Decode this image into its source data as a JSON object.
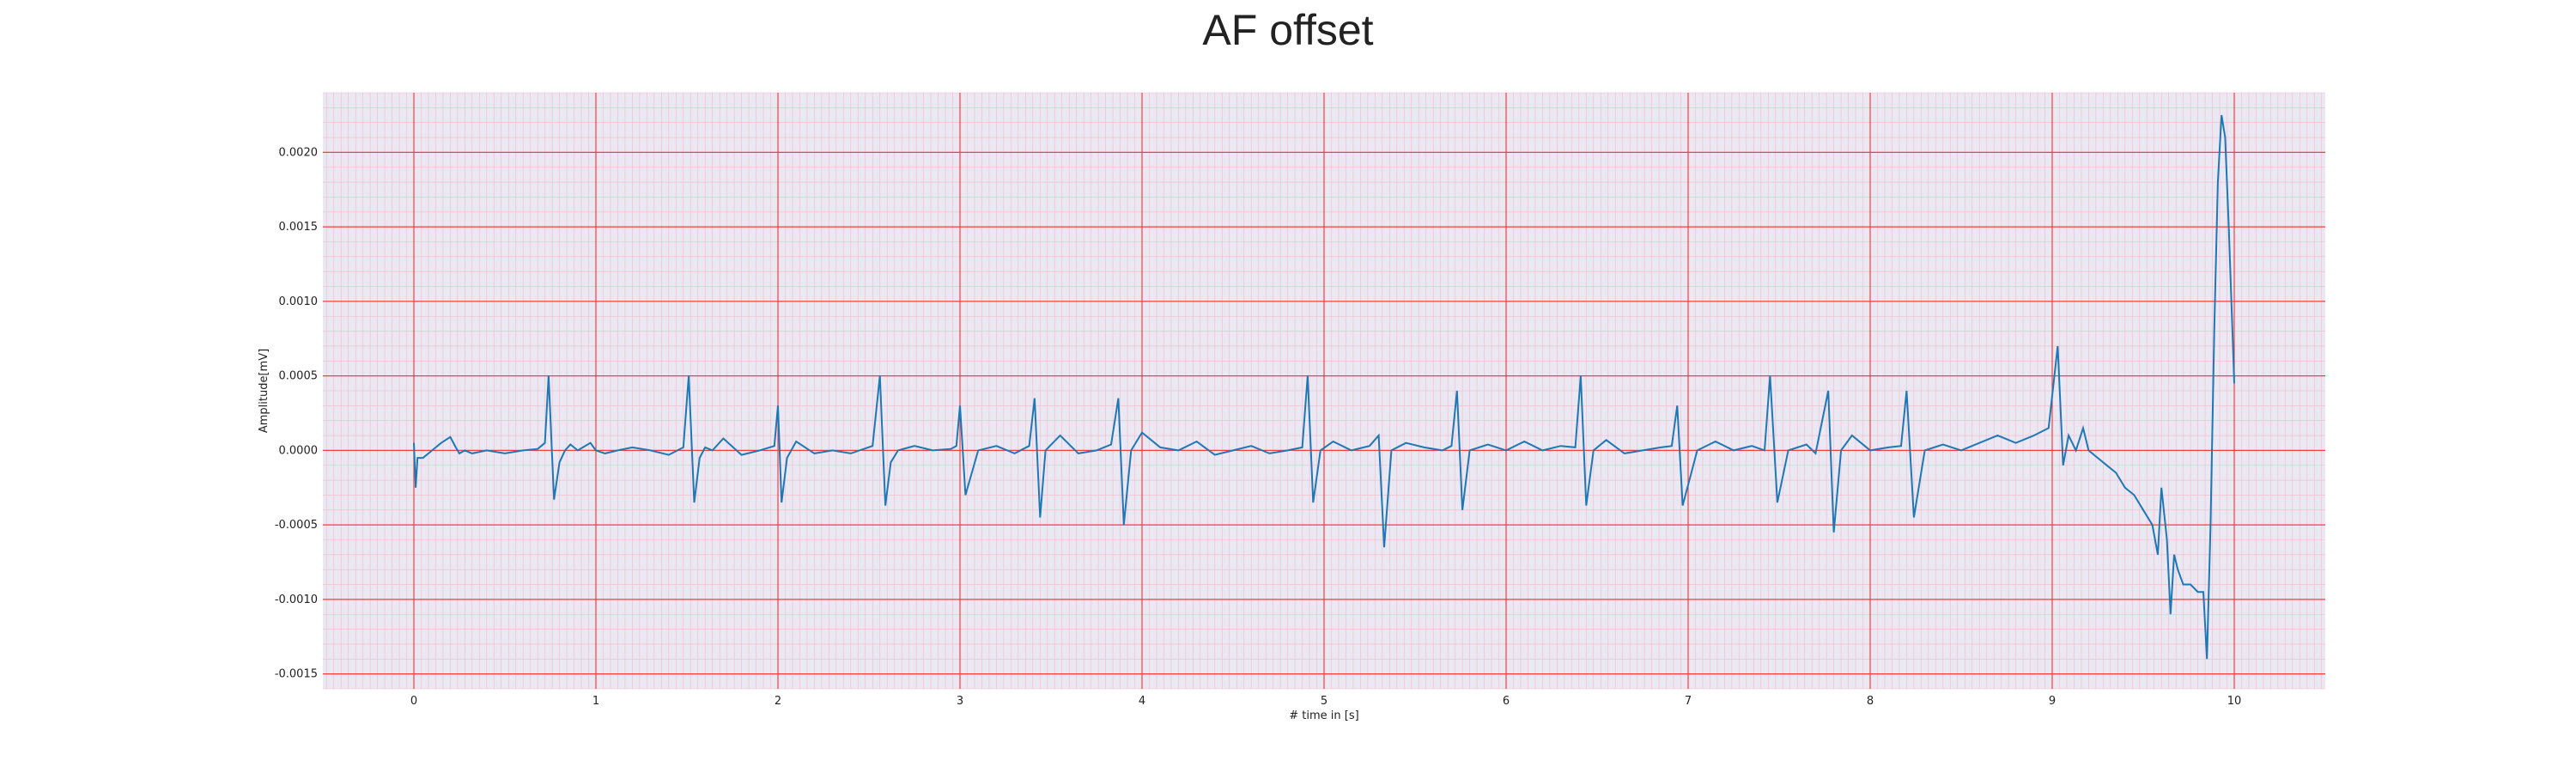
{
  "chart_data": {
    "type": "line",
    "title": "AF offset",
    "xlabel": "# time in [s]",
    "ylabel": "Amplitude[mV]",
    "xlim": [
      -0.5,
      10.5
    ],
    "ylim": [
      -0.0016,
      0.0024
    ],
    "xticks": [
      0,
      1,
      2,
      3,
      4,
      5,
      6,
      7,
      8,
      9,
      10
    ],
    "xtick_labels": [
      "0",
      "1",
      "2",
      "3",
      "4",
      "5",
      "6",
      "7",
      "8",
      "9",
      "10"
    ],
    "yticks": [
      -0.0015,
      -0.001,
      -0.0005,
      0.0,
      0.0005,
      0.001,
      0.0015,
      0.002
    ],
    "ytick_labels": [
      "-0.0015",
      "-0.0010",
      "-0.0005",
      "0.0000",
      "0.0005",
      "0.0010",
      "0.0015",
      "0.0020"
    ],
    "grid": "major and minor, red, ECG paper style",
    "legend": "none",
    "colors": {
      "line": "#1f77b4",
      "plot_bg": "#eae8f3",
      "major_grid": "#ff3b3b",
      "minor_grid": "#f6b9c6"
    },
    "series": [
      {
        "x": [
          0.0,
          0.01,
          0.02,
          0.05,
          0.1,
          0.15,
          0.2,
          0.23,
          0.25,
          0.28,
          0.32,
          0.4,
          0.5,
          0.6,
          0.68,
          0.72,
          0.74,
          0.77,
          0.8,
          0.83,
          0.86,
          0.9,
          0.97,
          1.0,
          1.05,
          1.12,
          1.2,
          1.3,
          1.4,
          1.48,
          1.51,
          1.54,
          1.57,
          1.6,
          1.64,
          1.7,
          1.8,
          1.9,
          1.98,
          2.0,
          2.02,
          2.05,
          2.1,
          2.2,
          2.3,
          2.4,
          2.52,
          2.56,
          2.59,
          2.62,
          2.66,
          2.75,
          2.85,
          2.95,
          2.98,
          3.0,
          3.03,
          3.1,
          3.2,
          3.3,
          3.38,
          3.41,
          3.44,
          3.47,
          3.55,
          3.65,
          3.75,
          3.83,
          3.87,
          3.9,
          3.94,
          4.0,
          4.1,
          4.2,
          4.3,
          4.4,
          4.5,
          4.6,
          4.7,
          4.8,
          4.88,
          4.91,
          4.94,
          4.98,
          5.05,
          5.15,
          5.25,
          5.3,
          5.33,
          5.37,
          5.45,
          5.55,
          5.65,
          5.7,
          5.73,
          5.76,
          5.8,
          5.9,
          6.0,
          6.1,
          6.2,
          6.3,
          6.38,
          6.41,
          6.44,
          6.48,
          6.55,
          6.65,
          6.75,
          6.85,
          6.91,
          6.94,
          6.97,
          7.05,
          7.15,
          7.25,
          7.35,
          7.42,
          7.45,
          7.49,
          7.55,
          7.65,
          7.7,
          7.77,
          7.8,
          7.84,
          7.9,
          8.0,
          8.1,
          8.17,
          8.2,
          8.24,
          8.3,
          8.4,
          8.5,
          8.6,
          8.7,
          8.8,
          8.9,
          8.98,
          9.03,
          9.06,
          9.09,
          9.13,
          9.17,
          9.2,
          9.25,
          9.3,
          9.35,
          9.4,
          9.45,
          9.5,
          9.55,
          9.58,
          9.6,
          9.63,
          9.65,
          9.67,
          9.69,
          9.72,
          9.76,
          9.8,
          9.83,
          9.85,
          9.87,
          9.89,
          9.91,
          9.93,
          9.95,
          9.97,
          9.99,
          10.0
        ],
        "y": [
          5e-05,
          -0.00025,
          -5e-05,
          -5e-05,
          0.0,
          5e-05,
          9e-05,
          2e-05,
          -2e-05,
          0.0,
          -2e-05,
          0.0,
          -2e-05,
          0.0,
          1e-05,
          5e-05,
          0.0005,
          -0.00033,
          -8e-05,
          0.0,
          4e-05,
          0.0,
          5e-05,
          0.0,
          -2e-05,
          0.0,
          2e-05,
          0.0,
          -3e-05,
          2e-05,
          0.0005,
          -0.00035,
          -5e-05,
          2e-05,
          0.0,
          8e-05,
          -3e-05,
          0.0,
          3e-05,
          0.0003,
          -0.00035,
          -5e-05,
          6e-05,
          -2e-05,
          0.0,
          -2e-05,
          3e-05,
          0.0005,
          -0.00037,
          -8e-05,
          0.0,
          3e-05,
          0.0,
          1e-05,
          3e-05,
          0.0003,
          -0.0003,
          0.0,
          3e-05,
          -2e-05,
          3e-05,
          0.00035,
          -0.00045,
          0.0,
          0.0001,
          -2e-05,
          0.0,
          4e-05,
          0.00035,
          -0.0005,
          0.0,
          0.00012,
          2e-05,
          0.0,
          6e-05,
          -3e-05,
          0.0,
          3e-05,
          -2e-05,
          0.0,
          2e-05,
          0.0005,
          -0.00035,
          0.0,
          6e-05,
          0.0,
          3e-05,
          0.0001,
          -0.00065,
          0.0,
          5e-05,
          2e-05,
          0.0,
          3e-05,
          0.0004,
          -0.0004,
          0.0,
          4e-05,
          0.0,
          6e-05,
          0.0,
          3e-05,
          2e-05,
          0.0005,
          -0.00037,
          0.0,
          7e-05,
          -2e-05,
          0.0,
          2e-05,
          3e-05,
          0.0003,
          -0.00037,
          0.0,
          6e-05,
          0.0,
          3e-05,
          0.0,
          0.0005,
          -0.00035,
          0.0,
          4e-05,
          -2e-05,
          0.0004,
          -0.00055,
          0.0,
          0.0001,
          0.0,
          2e-05,
          3e-05,
          0.0004,
          -0.00045,
          0.0,
          4e-05,
          0.0,
          5e-05,
          0.0001,
          5e-05,
          0.0001,
          0.00015,
          0.0007,
          -0.0001,
          0.0001,
          0.0,
          0.00015,
          0.0,
          -5e-05,
          -0.0001,
          -0.00015,
          -0.00025,
          -0.0003,
          -0.0004,
          -0.0005,
          -0.0007,
          -0.00025,
          -0.0006,
          -0.0011,
          -0.0007,
          -0.0008,
          -0.0009,
          -0.0009,
          -0.00095,
          -0.00095,
          -0.0014,
          -0.0005,
          0.0008,
          0.0018,
          0.00225,
          0.0021,
          0.0015,
          0.0008,
          0.00045
        ]
      }
    ]
  }
}
